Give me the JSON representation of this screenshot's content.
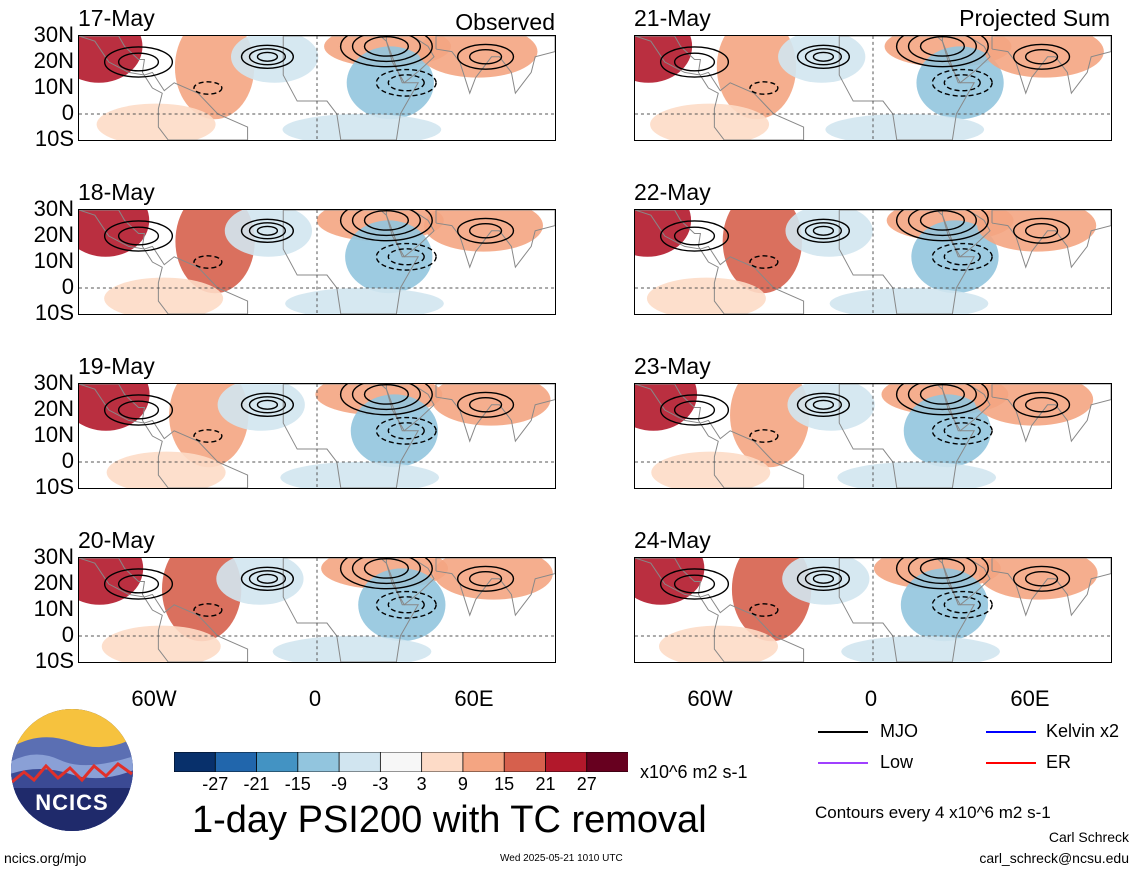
{
  "columns": {
    "left_title": "Observed",
    "right_title": "Projected Sum"
  },
  "panels": {
    "left": [
      {
        "date": "17-May"
      },
      {
        "date": "18-May"
      },
      {
        "date": "19-May"
      },
      {
        "date": "20-May"
      }
    ],
    "right": [
      {
        "date": "21-May"
      },
      {
        "date": "22-May"
      },
      {
        "date": "23-May"
      },
      {
        "date": "24-May"
      }
    ]
  },
  "axes": {
    "lat_labels": [
      "30N",
      "20N",
      "10N",
      "0",
      "10S"
    ],
    "lon_labels": [
      "60W",
      "0",
      "60E"
    ]
  },
  "colorbar": {
    "labels": [
      "-27",
      "-21",
      "-15",
      "-9",
      "-3",
      "3",
      "9",
      "15",
      "21",
      "27"
    ],
    "colors": [
      "#08306b",
      "#2166ac",
      "#4393c3",
      "#92c5de",
      "#d1e5f0",
      "#f7f7f7",
      "#fddbc7",
      "#f4a582",
      "#d6604d",
      "#b2182b",
      "#67001f"
    ],
    "units": "x10^6 m2 s-1"
  },
  "legend": {
    "items": [
      {
        "label": "MJO",
        "color": "#000000"
      },
      {
        "label": "Kelvin x2",
        "color": "#0000ff"
      },
      {
        "label": "Low",
        "color": "#a040ff"
      },
      {
        "label": "ER",
        "color": "#ff0000"
      }
    ],
    "contour_note": "Contours every 4 x10^6 m2 s-1"
  },
  "footer": {
    "title": "1-day PSI200 with TC removal",
    "url": "ncics.org/mjo",
    "timestamp": "Wed 2025-05-21 1010 UTC",
    "author": "Carl Schreck",
    "email": "carl_schreck@ncsu.edu",
    "logo_text": "NCICS"
  }
}
